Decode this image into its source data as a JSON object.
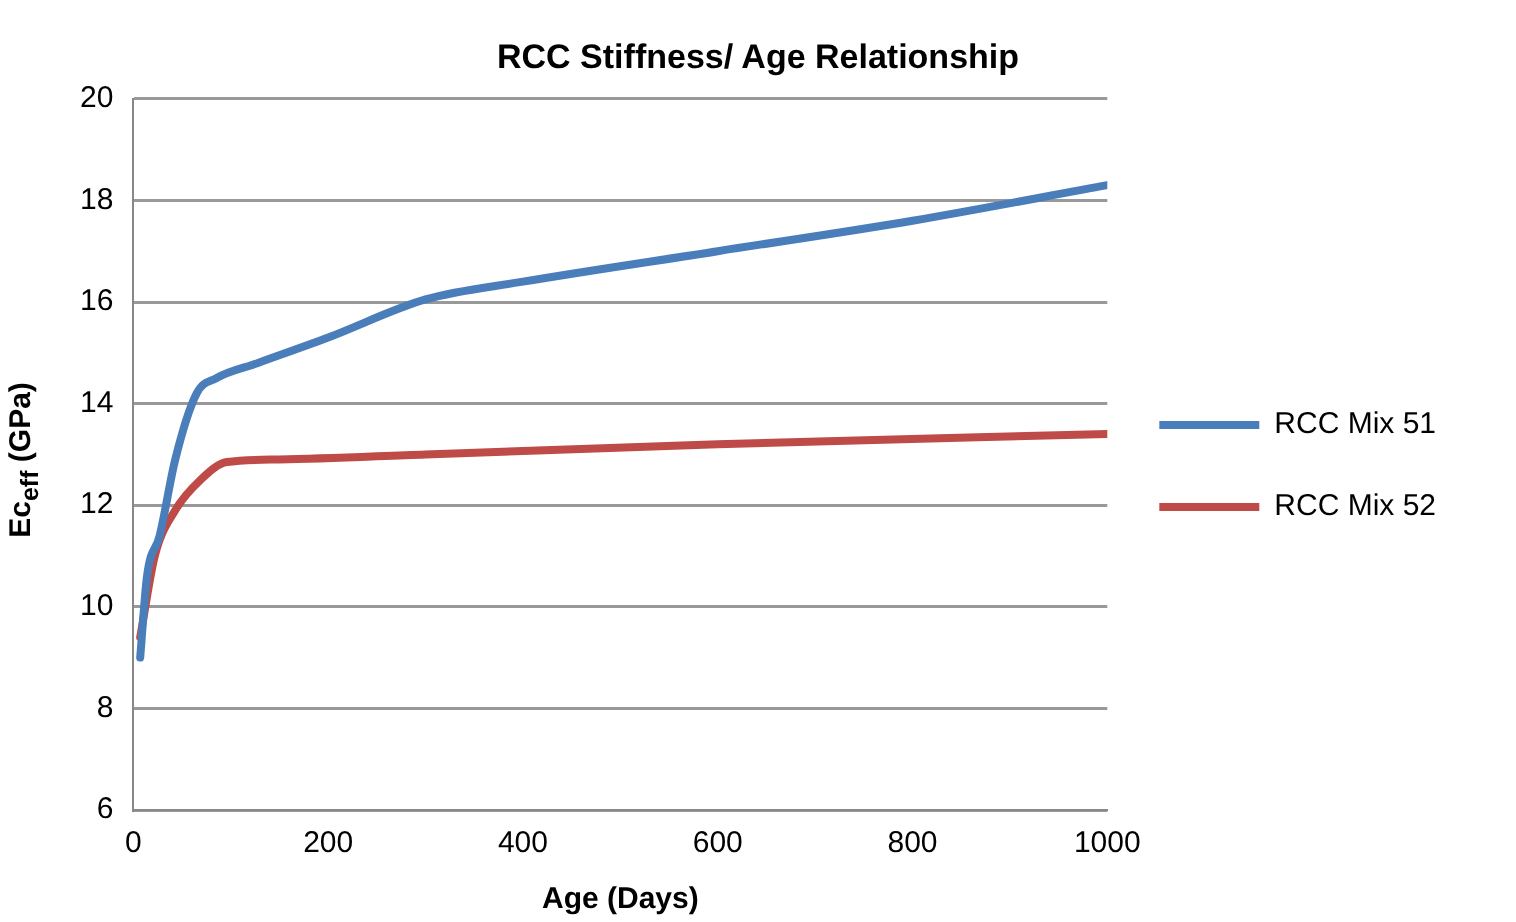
{
  "chart_data": {
    "type": "line",
    "title": "RCC Stiffness/ Age Relationship",
    "xlabel": "Age (Days)",
    "ylabel": "Ec$_{eff}$ (GPa)",
    "xlim": [
      0,
      1000
    ],
    "xticks": [
      0,
      200,
      400,
      600,
      800,
      1000
    ],
    "ylim": [
      6,
      20
    ],
    "yticks": [
      6,
      8,
      10,
      12,
      14,
      16,
      18,
      20
    ],
    "grid": "y",
    "legend": "right",
    "marker": "none",
    "line_style": "solid",
    "series": [
      {
        "name": "RCC Mix 51",
        "color": "#4a7ebb",
        "x": [
          7,
          14,
          27,
          43,
          65,
          85,
          128,
          200,
          300,
          400,
          600,
          800,
          1000
        ],
        "values": [
          9.0,
          10.6,
          11.4,
          12.9,
          14.2,
          14.5,
          14.8,
          15.3,
          16.05,
          16.4,
          17.0,
          17.6,
          18.3
        ]
      },
      {
        "name": "RCC Mix 52",
        "color": "#be4b48",
        "x": [
          7,
          22,
          43,
          69,
          96,
          150,
          300,
          600,
          1000
        ],
        "values": [
          9.4,
          11.0,
          11.9,
          12.5,
          12.85,
          12.9,
          13.0,
          13.2,
          13.4
        ]
      }
    ]
  }
}
